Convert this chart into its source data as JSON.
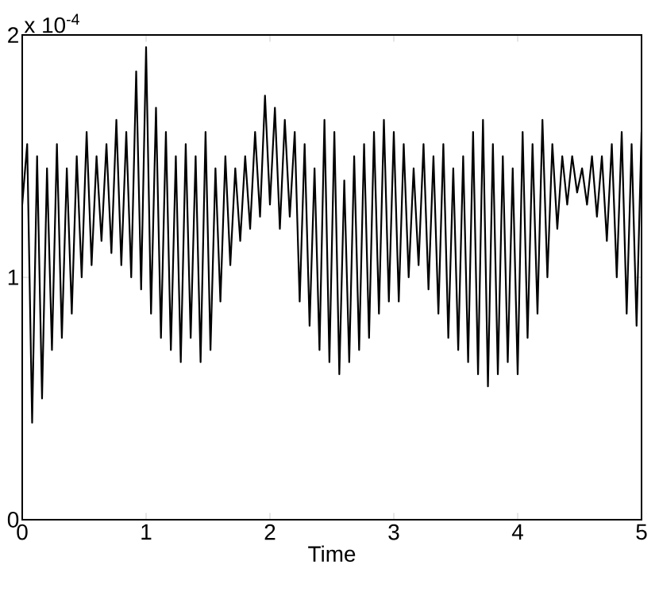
{
  "chart_data": {
    "type": "line",
    "xlabel": "Time",
    "annotations": [
      "x 10$^{-4}$"
    ],
    "xlim": [
      0,
      5
    ],
    "xticks": [
      0,
      1,
      2,
      3,
      4,
      5
    ],
    "ylim": [
      0,
      2
    ],
    "yticks": [
      0,
      1,
      2
    ],
    "grid": false,
    "line_style": "solid",
    "marker": "none",
    "series": [
      {
        "color": "#000000",
        "x": [
          0,
          0.04,
          0.08,
          0.12,
          0.16,
          0.2,
          0.24,
          0.28,
          0.32,
          0.36,
          0.4,
          0.44,
          0.48,
          0.52,
          0.56,
          0.6,
          0.64,
          0.68,
          0.72,
          0.76,
          0.8,
          0.84,
          0.88,
          0.92,
          0.96,
          1.0,
          1.04,
          1.08,
          1.12,
          1.16,
          1.2,
          1.24,
          1.28,
          1.32,
          1.36,
          1.4,
          1.44,
          1.48,
          1.52,
          1.56,
          1.6,
          1.64,
          1.68,
          1.72,
          1.76,
          1.8,
          1.84,
          1.88,
          1.92,
          1.96,
          2.0,
          2.04,
          2.08,
          2.12,
          2.16,
          2.2,
          2.24,
          2.28,
          2.32,
          2.36,
          2.4,
          2.44,
          2.48,
          2.52,
          2.56,
          2.6,
          2.64,
          2.68,
          2.72,
          2.76,
          2.8,
          2.84,
          2.88,
          2.92,
          2.96,
          3.0,
          3.04,
          3.08,
          3.12,
          3.16,
          3.2,
          3.24,
          3.28,
          3.32,
          3.36,
          3.4,
          3.44,
          3.48,
          3.52,
          3.56,
          3.6,
          3.64,
          3.68,
          3.72,
          3.76,
          3.8,
          3.84,
          3.88,
          3.92,
          3.96,
          4.0,
          4.04,
          4.08,
          4.12,
          4.16,
          4.2,
          4.24,
          4.28,
          4.32,
          4.36,
          4.4,
          4.44,
          4.48,
          4.52,
          4.56,
          4.6,
          4.64,
          4.68,
          4.72,
          4.76,
          4.8,
          4.84,
          4.88,
          4.92,
          4.96,
          5.0
        ],
        "values": [
          1.3,
          1.55,
          0.4,
          1.5,
          0.5,
          1.45,
          0.7,
          1.55,
          0.75,
          1.45,
          0.85,
          1.5,
          1.0,
          1.6,
          1.05,
          1.5,
          1.15,
          1.55,
          1.1,
          1.65,
          1.05,
          1.6,
          1.0,
          1.85,
          0.95,
          1.95,
          0.85,
          1.7,
          0.75,
          1.6,
          0.7,
          1.5,
          0.65,
          1.55,
          0.75,
          1.5,
          0.65,
          1.6,
          0.7,
          1.45,
          0.9,
          1.5,
          1.05,
          1.45,
          1.15,
          1.5,
          1.2,
          1.6,
          1.25,
          1.75,
          1.3,
          1.7,
          1.2,
          1.65,
          1.25,
          1.6,
          0.9,
          1.55,
          0.8,
          1.45,
          0.7,
          1.65,
          0.65,
          1.6,
          0.6,
          1.4,
          0.65,
          1.5,
          0.7,
          1.55,
          0.75,
          1.6,
          0.85,
          1.65,
          0.9,
          1.6,
          0.9,
          1.55,
          1.0,
          1.45,
          1.05,
          1.55,
          0.95,
          1.5,
          0.85,
          1.55,
          0.75,
          1.45,
          0.7,
          1.5,
          0.65,
          1.6,
          0.6,
          1.65,
          0.55,
          1.55,
          0.6,
          1.5,
          0.65,
          1.45,
          0.6,
          1.6,
          0.75,
          1.55,
          0.85,
          1.65,
          1.0,
          1.55,
          1.2,
          1.5,
          1.3,
          1.5,
          1.35,
          1.45,
          1.3,
          1.5,
          1.25,
          1.5,
          1.15,
          1.55,
          1.0,
          1.6,
          0.85,
          1.55,
          0.8,
          1.6
        ]
      }
    ]
  }
}
